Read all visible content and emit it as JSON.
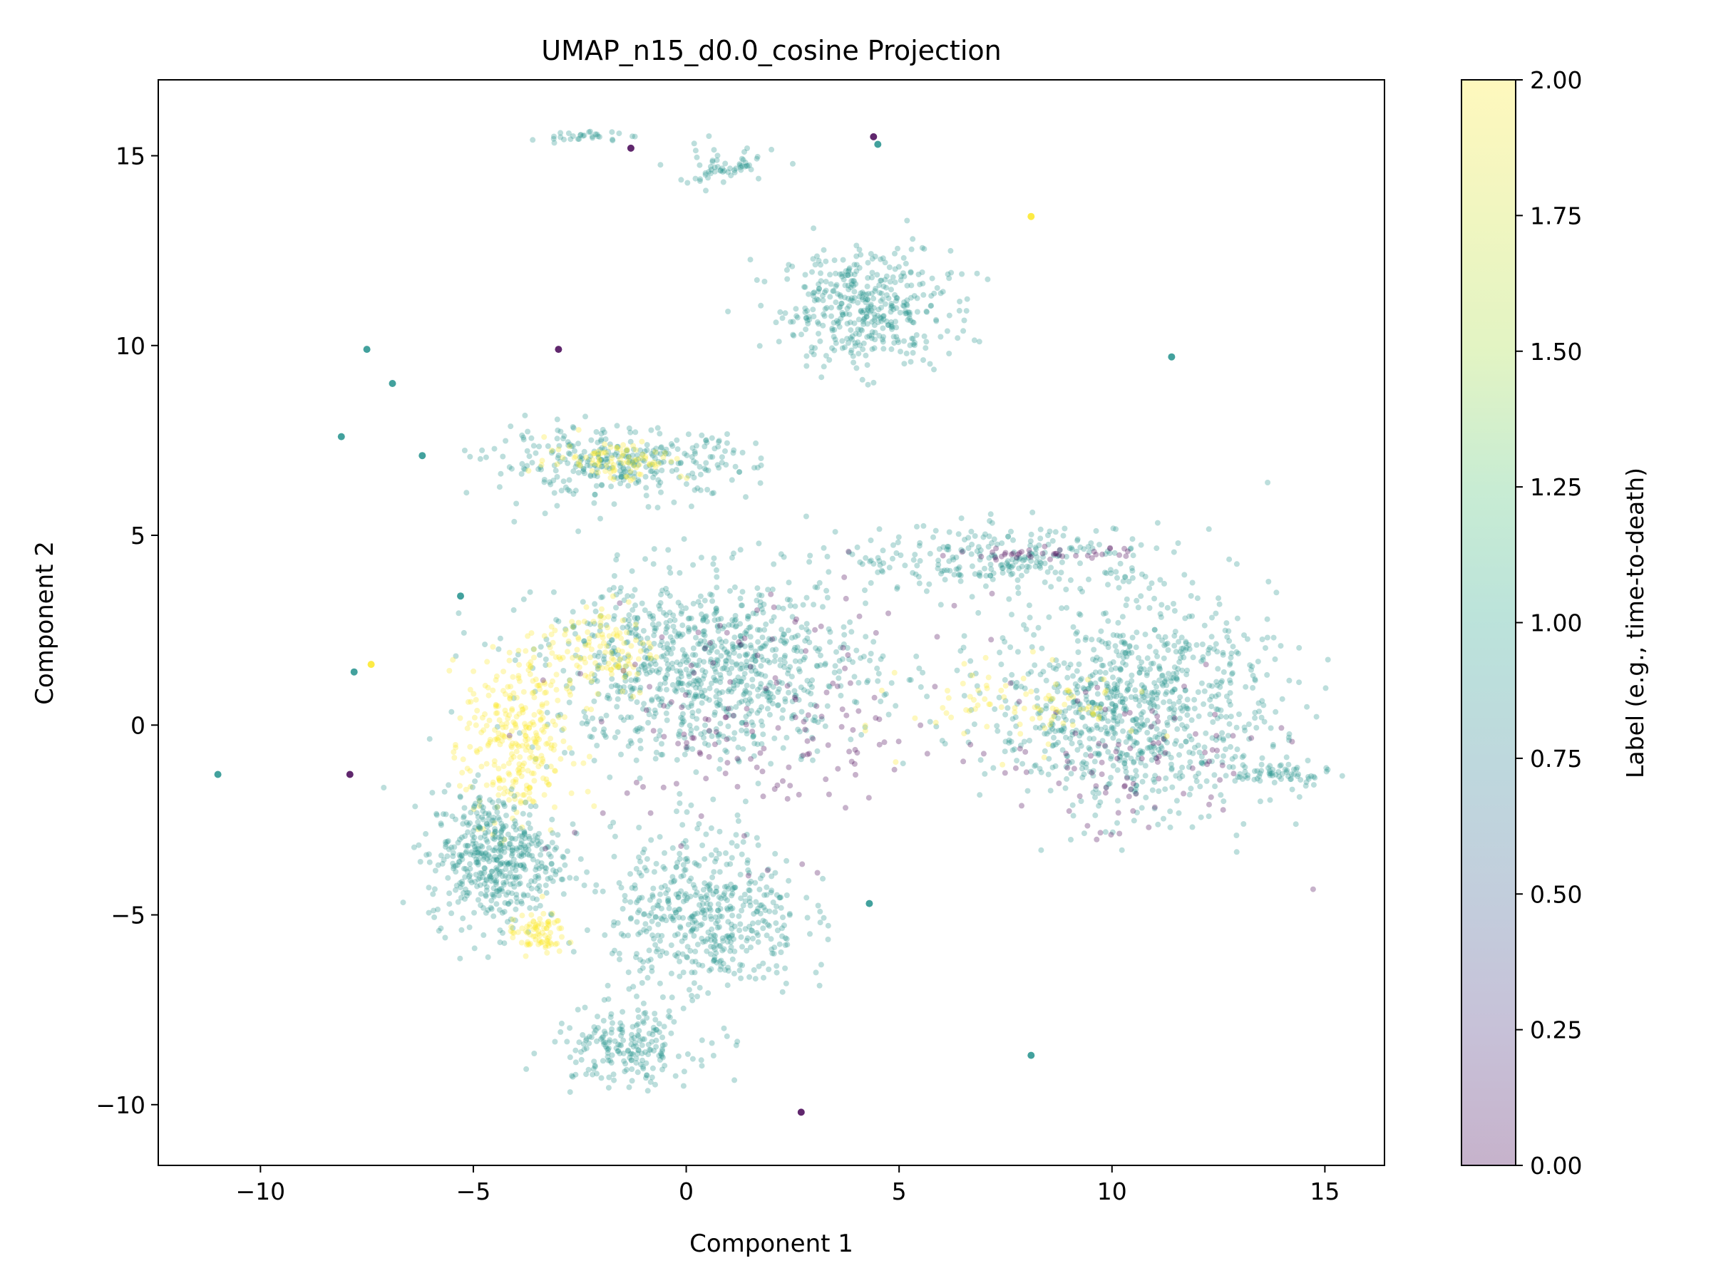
{
  "chart_data": {
    "type": "scatter",
    "title": "UMAP_n15_d0.0_cosine Projection",
    "xlabel": "Component 1",
    "ylabel": "Component 2",
    "xlim": [
      -12.4,
      16.4
    ],
    "ylim": [
      -11.6,
      17.0
    ],
    "x_ticks": [
      {
        "value": -10,
        "label": "−10"
      },
      {
        "value": -5,
        "label": "−5"
      },
      {
        "value": 0,
        "label": "0"
      },
      {
        "value": 5,
        "label": "5"
      },
      {
        "value": 10,
        "label": "10"
      },
      {
        "value": 15,
        "label": "15"
      }
    ],
    "y_ticks": [
      {
        "value": -10,
        "label": "−10"
      },
      {
        "value": -5,
        "label": "−5"
      },
      {
        "value": 0,
        "label": "0"
      },
      {
        "value": 5,
        "label": "5"
      },
      {
        "value": 10,
        "label": "10"
      },
      {
        "value": 15,
        "label": "15"
      }
    ],
    "grid": false,
    "colormap": "viridis",
    "point_alpha": 0.3,
    "colorbar": {
      "label": "Label (e.g., time-to-death)",
      "range": [
        0.0,
        2.0
      ],
      "ticks": [
        "0.00",
        "0.25",
        "0.50",
        "0.75",
        "1.00",
        "1.25",
        "1.50",
        "1.75",
        "2.00"
      ],
      "tick_values": [
        0,
        0.25,
        0.5,
        0.75,
        1.0,
        1.25,
        1.5,
        1.75,
        2.0
      ]
    },
    "label_colors": {
      "0": "#440154",
      "1": "#21918c",
      "2": "#fde725"
    },
    "clusters": [
      {
        "label": 1,
        "center": [
          4.2,
          11.0
        ],
        "spread": [
          1.8,
          1.4
        ],
        "count": 420
      },
      {
        "label": 1,
        "center": [
          0.8,
          14.7
        ],
        "spread": [
          1.2,
          0.5
        ],
        "count": 60
      },
      {
        "label": 1,
        "center": [
          -2.5,
          15.5
        ],
        "spread": [
          0.9,
          0.12
        ],
        "count": 30
      },
      {
        "label": 1,
        "center": [
          -1.5,
          6.9
        ],
        "spread": [
          2.8,
          0.8
        ],
        "count": 320
      },
      {
        "label": 2,
        "center": [
          -1.6,
          7.0
        ],
        "spread": [
          1.5,
          0.5
        ],
        "count": 90
      },
      {
        "label": 1,
        "center": [
          7.5,
          4.4
        ],
        "spread": [
          3.5,
          0.8
        ],
        "count": 260
      },
      {
        "label": 0,
        "center": [
          8.5,
          4.5
        ],
        "spread": [
          2.0,
          0.15
        ],
        "count": 40
      },
      {
        "label": 1,
        "center": [
          0.5,
          1.5
        ],
        "spread": [
          3.5,
          2.2
        ],
        "count": 950
      },
      {
        "label": 1,
        "center": [
          10.5,
          0.5
        ],
        "spread": [
          3.0,
          2.5
        ],
        "count": 900
      },
      {
        "label": 2,
        "center": [
          -4.0,
          -0.5
        ],
        "spread": [
          1.1,
          2.2
        ],
        "count": 300
      },
      {
        "label": 2,
        "center": [
          -2.0,
          2.0
        ],
        "spread": [
          1.2,
          1.2
        ],
        "count": 120
      },
      {
        "label": 1,
        "center": [
          -4.5,
          -3.5
        ],
        "spread": [
          1.4,
          1.6
        ],
        "count": 500
      },
      {
        "label": 2,
        "center": [
          -3.5,
          -5.5
        ],
        "spread": [
          0.6,
          0.5
        ],
        "count": 80
      },
      {
        "label": 1,
        "center": [
          0.5,
          -5.0
        ],
        "spread": [
          2.0,
          2.0
        ],
        "count": 520
      },
      {
        "label": 1,
        "center": [
          -1.5,
          -8.5
        ],
        "spread": [
          1.5,
          0.9
        ],
        "count": 200
      },
      {
        "label": 0,
        "center": [
          2.0,
          0.0
        ],
        "spread": [
          4.0,
          3.0
        ],
        "count": 160
      },
      {
        "label": 0,
        "center": [
          10.5,
          -1.0
        ],
        "spread": [
          3.0,
          2.0
        ],
        "count": 90
      },
      {
        "label": 2,
        "center": [
          8.0,
          0.5
        ],
        "spread": [
          2.5,
          1.0
        ],
        "count": 90
      },
      {
        "label": 1,
        "center": [
          14.0,
          -1.3
        ],
        "spread": [
          1.0,
          0.3
        ],
        "count": 60
      }
    ],
    "isolated_points": [
      {
        "x": -11.0,
        "y": -1.3,
        "label": 1
      },
      {
        "x": -7.5,
        "y": 9.9,
        "label": 1
      },
      {
        "x": -6.9,
        "y": 9.0,
        "label": 1
      },
      {
        "x": -8.1,
        "y": 7.6,
        "label": 1
      },
      {
        "x": -6.2,
        "y": 7.1,
        "label": 1
      },
      {
        "x": -7.8,
        "y": 1.4,
        "label": 1
      },
      {
        "x": -7.4,
        "y": 1.6,
        "label": 2
      },
      {
        "x": -7.9,
        "y": -1.3,
        "label": 0
      },
      {
        "x": -5.3,
        "y": 3.4,
        "label": 1
      },
      {
        "x": -3.0,
        "y": 9.9,
        "label": 0
      },
      {
        "x": 4.4,
        "y": 15.5,
        "label": 0
      },
      {
        "x": 4.5,
        "y": 15.3,
        "label": 1
      },
      {
        "x": 8.1,
        "y": 13.4,
        "label": 2
      },
      {
        "x": 11.4,
        "y": 9.7,
        "label": 1
      },
      {
        "x": 4.3,
        "y": -4.7,
        "label": 1
      },
      {
        "x": 8.1,
        "y": -8.7,
        "label": 1
      },
      {
        "x": 2.7,
        "y": -10.2,
        "label": 0
      },
      {
        "x": -1.3,
        "y": 15.2,
        "label": 0
      }
    ]
  }
}
